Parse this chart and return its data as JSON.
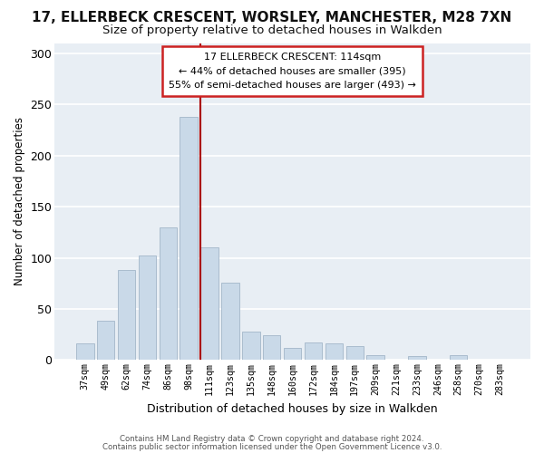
{
  "title_line1": "17, ELLERBECK CRESCENT, WORSLEY, MANCHESTER, M28 7XN",
  "title_line2": "Size of property relative to detached houses in Walkden",
  "xlabel": "Distribution of detached houses by size in Walkden",
  "ylabel": "Number of detached properties",
  "bar_labels": [
    "37sqm",
    "49sqm",
    "62sqm",
    "74sqm",
    "86sqm",
    "98sqm",
    "111sqm",
    "123sqm",
    "135sqm",
    "148sqm",
    "160sqm",
    "172sqm",
    "184sqm",
    "197sqm",
    "209sqm",
    "221sqm",
    "233sqm",
    "246sqm",
    "258sqm",
    "270sqm",
    "283sqm"
  ],
  "bar_values": [
    16,
    38,
    88,
    102,
    130,
    238,
    110,
    76,
    28,
    24,
    12,
    17,
    16,
    14,
    5,
    0,
    4,
    0,
    5,
    0,
    0
  ],
  "bar_color": "#c9d9e8",
  "bar_edge_color": "#aabcce",
  "marker_bar_index": 5,
  "marker_color": "#aa0000",
  "annotation_title": "17 ELLERBECK CRESCENT: 114sqm",
  "annotation_line1": "← 44% of detached houses are smaller (395)",
  "annotation_line2": "55% of semi-detached houses are larger (493) →",
  "annotation_box_facecolor": "#ffffff",
  "annotation_box_edgecolor": "#cc2222",
  "ylim": [
    0,
    310
  ],
  "yticks": [
    0,
    50,
    100,
    150,
    200,
    250,
    300
  ],
  "footer_line1": "Contains HM Land Registry data © Crown copyright and database right 2024.",
  "footer_line2": "Contains public sector information licensed under the Open Government Licence v3.0.",
  "fig_bg_color": "#ffffff",
  "axes_bg_color": "#e8eef4",
  "grid_color": "#ffffff",
  "title1_fontsize": 11,
  "title2_fontsize": 9.5
}
